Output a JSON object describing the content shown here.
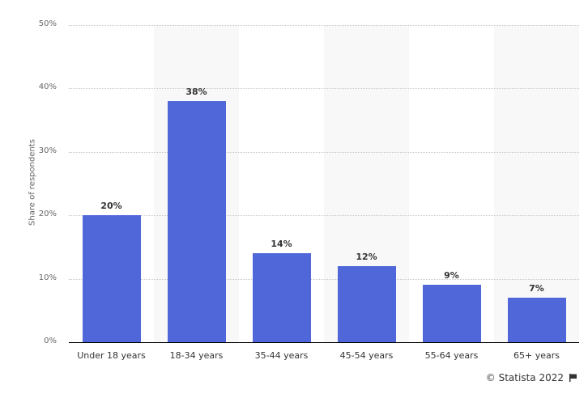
{
  "chart_data": {
    "type": "bar",
    "title": "",
    "xlabel": "",
    "ylabel": "Share of respondents",
    "categories": [
      "Under 18 years",
      "18-34 years",
      "35-44 years",
      "45-54 years",
      "55-64 years",
      "65+ years"
    ],
    "values": [
      20,
      38,
      14,
      12,
      9,
      7
    ],
    "value_labels": [
      "20%",
      "38%",
      "14%",
      "12%",
      "9%",
      "7%"
    ],
    "ylim": [
      0,
      50
    ],
    "yticks": [
      0,
      10,
      20,
      30,
      40,
      50
    ],
    "ytick_labels": [
      "0%",
      "10%",
      "20%",
      "30%",
      "40%",
      "50%"
    ],
    "grid": true,
    "legend": null,
    "bar_color": "#4f67d9"
  },
  "credit": {
    "text": "© Statista 2022",
    "icon": "flag-icon"
  }
}
